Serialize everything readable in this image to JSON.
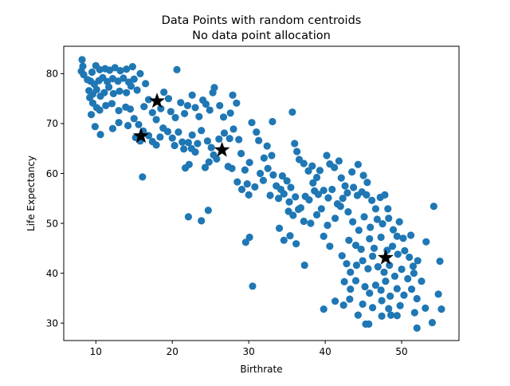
{
  "chart_data": {
    "type": "scatter",
    "title": [
      "Data Points with random centroids",
      "No data point allocation"
    ],
    "xlabel": "Birthrate",
    "ylabel": "Life Expectancy",
    "xlim": [
      5.8,
      57.5
    ],
    "ylim": [
      26.5,
      85.5
    ],
    "xticks": [
      10,
      20,
      30,
      40,
      50
    ],
    "yticks": [
      30,
      40,
      50,
      60,
      70,
      80
    ],
    "grid": false,
    "colors": {
      "points": "#1f77b4",
      "centroids": "#000000"
    },
    "series": [
      {
        "marker": "circle",
        "points": [
          [
            8.2,
            82.8
          ],
          [
            8.3,
            81.5
          ],
          [
            8.1,
            80.5
          ],
          [
            8.4,
            79.8
          ],
          [
            8.9,
            78.8
          ],
          [
            9.5,
            80.3
          ],
          [
            10.0,
            81.6
          ],
          [
            10.5,
            80.8
          ],
          [
            11.2,
            81.0
          ],
          [
            11.8,
            80.7
          ],
          [
            12.5,
            81.2
          ],
          [
            13.2,
            80.6
          ],
          [
            14.0,
            80.9
          ],
          [
            14.8,
            81.4
          ],
          [
            9.3,
            78.5
          ],
          [
            9.8,
            77.9
          ],
          [
            10.4,
            78.6
          ],
          [
            10.9,
            79.2
          ],
          [
            11.5,
            78.4
          ],
          [
            12.2,
            79.0
          ],
          [
            12.9,
            78.5
          ],
          [
            13.6,
            79.1
          ],
          [
            14.3,
            78.3
          ],
          [
            15.0,
            78.9
          ],
          [
            15.8,
            80.0
          ],
          [
            16.5,
            78.0
          ],
          [
            9.1,
            76.6
          ],
          [
            9.6,
            75.9
          ],
          [
            10.1,
            76.8
          ],
          [
            10.6,
            75.5
          ],
          [
            11.1,
            76.2
          ],
          [
            11.7,
            77.3
          ],
          [
            12.3,
            76.0
          ],
          [
            13.1,
            76.5
          ],
          [
            14.0,
            76.2
          ],
          [
            14.6,
            77.5
          ],
          [
            15.4,
            76.7
          ],
          [
            9.2,
            75.2
          ],
          [
            9.6,
            74.1
          ],
          [
            10.1,
            73.2
          ],
          [
            10.5,
            72.7
          ],
          [
            11.3,
            73.6
          ],
          [
            12.1,
            74.0
          ],
          [
            13.0,
            72.6
          ],
          [
            13.9,
            73.3
          ],
          [
            14.5,
            72.9
          ],
          [
            9.4,
            71.8
          ],
          [
            9.9,
            69.4
          ],
          [
            10.6,
            67.8
          ],
          [
            12.2,
            69.0
          ],
          [
            13.0,
            70.2
          ],
          [
            14.2,
            69.6
          ],
          [
            15.0,
            71.0
          ],
          [
            15.6,
            69.8
          ],
          [
            16.3,
            73.4
          ],
          [
            16.9,
            74.8
          ],
          [
            17.4,
            72.2
          ],
          [
            17.9,
            70.8
          ],
          [
            18.5,
            73.0
          ],
          [
            18.9,
            76.3
          ],
          [
            19.5,
            75.0
          ],
          [
            19.8,
            72.4
          ],
          [
            20.4,
            71.2
          ],
          [
            20.6,
            80.8
          ],
          [
            21.1,
            74.2
          ],
          [
            21.6,
            72.0
          ],
          [
            22.0,
            73.6
          ],
          [
            22.6,
            75.7
          ],
          [
            23.0,
            73.2
          ],
          [
            23.5,
            71.4
          ],
          [
            24.0,
            74.7
          ],
          [
            24.4,
            73.9
          ],
          [
            24.9,
            72.7
          ],
          [
            25.5,
            77.2
          ],
          [
            25.3,
            76.2
          ],
          [
            26.2,
            73.6
          ],
          [
            26.7,
            71.3
          ],
          [
            27.6,
            72.1
          ],
          [
            27.9,
            75.7
          ],
          [
            28.4,
            74.1
          ],
          [
            15.2,
            67.2
          ],
          [
            15.8,
            66.5
          ],
          [
            16.2,
            68.5
          ],
          [
            16.9,
            67.6
          ],
          [
            17.4,
            66.4
          ],
          [
            17.9,
            65.7
          ],
          [
            18.4,
            67.3
          ],
          [
            18.8,
            69.1
          ],
          [
            19.4,
            68.4
          ],
          [
            20.0,
            67.1
          ],
          [
            20.3,
            65.6
          ],
          [
            20.8,
            68.3
          ],
          [
            21.3,
            66.3
          ],
          [
            21.5,
            64.9
          ],
          [
            22.1,
            66.2
          ],
          [
            22.5,
            65.0
          ],
          [
            22.6,
            67.7
          ],
          [
            23.3,
            66.0
          ],
          [
            23.8,
            68.6
          ],
          [
            24.6,
            66.5
          ],
          [
            25.1,
            65.2
          ],
          [
            25.4,
            63.7
          ],
          [
            26.1,
            66.9
          ],
          [
            26.8,
            68.1
          ],
          [
            27.5,
            67.0
          ],
          [
            28.0,
            68.9
          ],
          [
            28.7,
            66.8
          ],
          [
            22.2,
            61.8
          ],
          [
            23.0,
            64.3
          ],
          [
            24.3,
            61.2
          ],
          [
            24.8,
            62.3
          ],
          [
            25.8,
            62.9
          ],
          [
            27.3,
            61.4
          ],
          [
            27.8,
            61.0
          ],
          [
            29.0,
            64.0
          ],
          [
            30.1,
            62.2
          ],
          [
            30.4,
            70.2
          ],
          [
            31.0,
            68.3
          ],
          [
            31.3,
            66.6
          ],
          [
            32.0,
            63.1
          ],
          [
            32.4,
            65.5
          ],
          [
            33.1,
            70.4
          ],
          [
            29.5,
            60.7
          ],
          [
            31.5,
            60.0
          ],
          [
            28.5,
            58.3
          ],
          [
            29.8,
            57.9
          ],
          [
            30.8,
            57.3
          ],
          [
            31.9,
            58.6
          ],
          [
            32.5,
            61.0
          ],
          [
            33.2,
            59.7
          ],
          [
            33.6,
            57.5
          ],
          [
            34.2,
            56.8
          ],
          [
            35.0,
            58.5
          ],
          [
            35.5,
            57.2
          ],
          [
            34.6,
            55.9
          ],
          [
            36.0,
            66.0
          ],
          [
            36.3,
            64.4
          ],
          [
            36.6,
            62.8
          ],
          [
            37.2,
            62.0
          ],
          [
            37.8,
            60.5
          ],
          [
            38.3,
            61.5
          ],
          [
            38.9,
            59.2
          ],
          [
            39.3,
            60.6
          ],
          [
            40.2,
            63.6
          ],
          [
            40.6,
            61.9
          ],
          [
            41.2,
            61.2
          ],
          [
            41.8,
            62.5
          ],
          [
            42.1,
            59.1
          ],
          [
            42.6,
            57.5
          ],
          [
            43.5,
            60.3
          ],
          [
            44.3,
            61.8
          ],
          [
            45.0,
            59.6
          ],
          [
            45.5,
            58.2
          ],
          [
            35.7,
            72.3
          ],
          [
            29.1,
            56.8
          ],
          [
            30.0,
            55.7
          ],
          [
            32.8,
            55.6
          ],
          [
            33.9,
            55.0
          ],
          [
            35.3,
            54.3
          ],
          [
            36.1,
            55.3
          ],
          [
            36.8,
            53.1
          ],
          [
            37.4,
            55.4
          ],
          [
            37.9,
            54.7
          ],
          [
            38.6,
            56.5
          ],
          [
            39.1,
            55.8
          ],
          [
            39.8,
            56.6
          ],
          [
            40.4,
            55.1
          ],
          [
            40.9,
            56.8
          ],
          [
            41.6,
            53.9
          ],
          [
            42.3,
            55.0
          ],
          [
            42.9,
            56.1
          ],
          [
            43.7,
            57.2
          ],
          [
            44.2,
            55.6
          ],
          [
            44.8,
            56.3
          ],
          [
            45.4,
            55.7
          ],
          [
            46.1,
            54.6
          ],
          [
            46.6,
            52.9
          ],
          [
            47.2,
            55.2
          ],
          [
            47.8,
            55.7
          ],
          [
            48.2,
            52.9
          ],
          [
            35.2,
            52.4
          ],
          [
            35.8,
            51.6
          ],
          [
            36.5,
            52.8
          ],
          [
            37.2,
            50.4
          ],
          [
            38.1,
            50.0
          ],
          [
            38.9,
            51.7
          ],
          [
            39.5,
            52.9
          ],
          [
            40.3,
            49.6
          ],
          [
            41.3,
            51.0
          ],
          [
            42.0,
            53.4
          ],
          [
            43.0,
            52.3
          ],
          [
            43.6,
            50.3
          ],
          [
            44.4,
            48.6
          ],
          [
            45.1,
            51.3
          ],
          [
            45.9,
            49.2
          ],
          [
            46.8,
            50.8
          ],
          [
            47.5,
            49.9
          ],
          [
            48.3,
            51.0
          ],
          [
            48.9,
            48.7
          ],
          [
            49.7,
            50.3
          ],
          [
            49.4,
            47.4
          ],
          [
            50.2,
            47.0
          ],
          [
            51.2,
            47.6
          ],
          [
            54.2,
            53.4
          ],
          [
            34.0,
            49.0
          ],
          [
            35.4,
            47.5
          ],
          [
            36.2,
            45.9
          ],
          [
            39.8,
            47.4
          ],
          [
            40.6,
            45.4
          ],
          [
            43.1,
            46.6
          ],
          [
            44.0,
            45.6
          ],
          [
            44.7,
            44.8
          ],
          [
            45.8,
            46.9
          ],
          [
            46.4,
            45.0
          ],
          [
            47.3,
            47.2
          ],
          [
            48.1,
            44.6
          ],
          [
            48.8,
            45.4
          ],
          [
            49.5,
            43.8
          ],
          [
            50.4,
            44.5
          ],
          [
            51.0,
            43.2
          ],
          [
            51.5,
            41.4
          ],
          [
            52.1,
            42.5
          ],
          [
            53.2,
            46.3
          ],
          [
            55.0,
            42.4
          ],
          [
            42.2,
            43.5
          ],
          [
            42.8,
            41.9
          ],
          [
            43.3,
            40.2
          ],
          [
            44.1,
            41.6
          ],
          [
            44.9,
            42.5
          ],
          [
            45.6,
            40.9
          ],
          [
            46.2,
            43.4
          ],
          [
            46.9,
            41.3
          ],
          [
            47.7,
            40.2
          ],
          [
            48.4,
            41.6
          ],
          [
            49.1,
            39.4
          ],
          [
            50.0,
            40.8
          ],
          [
            50.8,
            38.9
          ],
          [
            51.6,
            40.0
          ],
          [
            52.6,
            38.4
          ],
          [
            42.5,
            38.3
          ],
          [
            43.3,
            36.8
          ],
          [
            44.0,
            38.5
          ],
          [
            45.2,
            37.3
          ],
          [
            45.8,
            36.0
          ],
          [
            46.6,
            37.6
          ],
          [
            47.3,
            36.6
          ],
          [
            47.9,
            38.4
          ],
          [
            48.5,
            35.4
          ],
          [
            49.4,
            36.9
          ],
          [
            50.3,
            35.6
          ],
          [
            51.3,
            36.8
          ],
          [
            52.0,
            34.9
          ],
          [
            43.2,
            34.8
          ],
          [
            44.9,
            33.8
          ],
          [
            46.2,
            33.1
          ],
          [
            47.4,
            34.5
          ],
          [
            48.3,
            32.9
          ],
          [
            49.8,
            33.5
          ],
          [
            51.7,
            32.1
          ],
          [
            53.1,
            33.0
          ],
          [
            54.8,
            35.8
          ],
          [
            55.2,
            32.8
          ],
          [
            39.8,
            32.8
          ],
          [
            41.3,
            34.4
          ],
          [
            42.4,
            33.6
          ],
          [
            44.3,
            31.6
          ],
          [
            45.3,
            29.8
          ],
          [
            45.7,
            29.8
          ],
          [
            47.4,
            31.4
          ],
          [
            48.6,
            31.6
          ],
          [
            49.4,
            31.5
          ],
          [
            52.0,
            29.0
          ],
          [
            54.0,
            30.1
          ],
          [
            30.5,
            37.4
          ],
          [
            29.6,
            46.2
          ],
          [
            30.1,
            47.2
          ],
          [
            34.6,
            46.6
          ],
          [
            37.3,
            41.6
          ],
          [
            22.1,
            51.3
          ],
          [
            23.8,
            50.5
          ],
          [
            24.7,
            52.6
          ],
          [
            16.1,
            59.3
          ],
          [
            21.7,
            61.1
          ],
          [
            33.0,
            63.6
          ],
          [
            34.4,
            59.5
          ],
          [
            38.4,
            58.1
          ]
        ]
      },
      {
        "marker": "star",
        "points": [
          [
            18.0,
            74.5
          ],
          [
            15.9,
            67.5
          ],
          [
            26.5,
            64.7
          ],
          [
            47.9,
            43.1
          ]
        ]
      }
    ]
  }
}
